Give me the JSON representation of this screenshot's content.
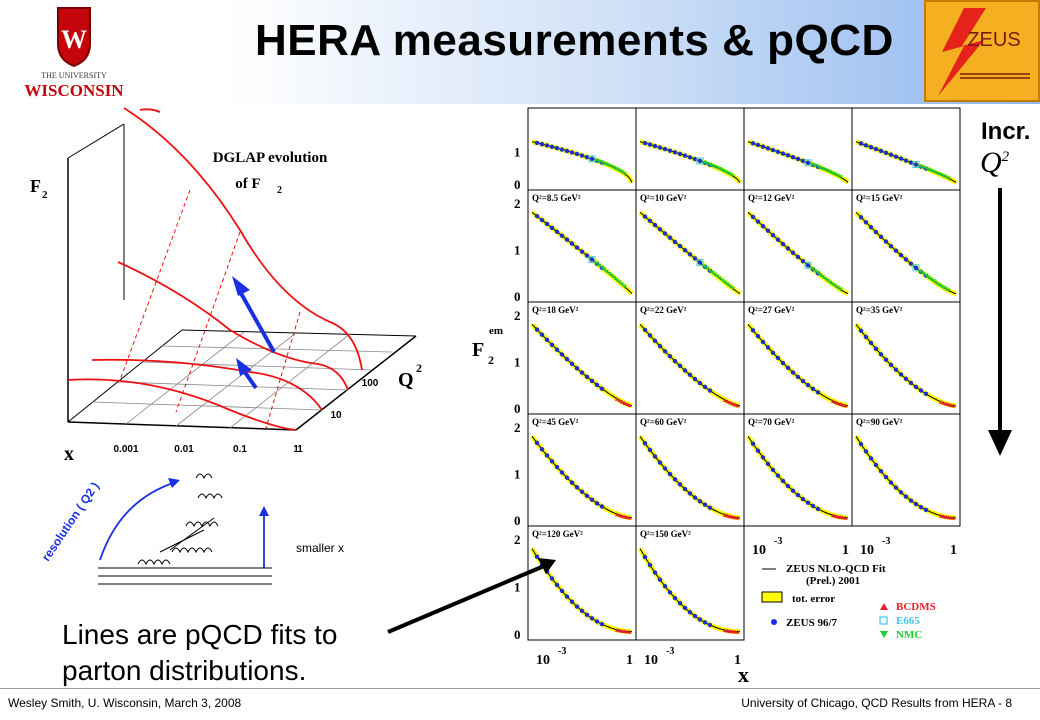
{
  "slide": {
    "title": "HERA measurements & pQCD",
    "increment_label": "Incr.",
    "increment_var": "Q",
    "increment_exp": "2",
    "callout_line1": "Lines are pQCD fits to",
    "callout_line2": "parton distributions.",
    "footer_left": "Wesley Smith, U. Wisconsin, March 3, 2008",
    "footer_right": "University of Chicago, QCD Results from HERA - 8"
  },
  "logos": {
    "uw_top": "THE UNIVERSITY",
    "uw_bottom": "WISCONSIN",
    "zeus": "ZEUS"
  },
  "dglap": {
    "title1": "DGLAP evolution",
    "title2": "of  F",
    "title2_sub": "2",
    "f2_label": "F",
    "f2_sub": "2",
    "x_label": "x",
    "q2_label": "Q",
    "q2_exp": "2",
    "x_ticks": [
      "0.001",
      "0.01",
      "0.1",
      "1"
    ],
    "q2_ticks": [
      "100",
      "10",
      "1"
    ],
    "resolution_label": "resolution ( Q2 )",
    "smaller_x_label": "smaller x"
  },
  "zeus_plot": {
    "y_axis_label": "F",
    "y_axis_sub": "2",
    "y_axis_sup": "em",
    "x_axis_label": "x",
    "y_ticks": [
      "0",
      "1",
      "2"
    ],
    "x_ticks_text": [
      "10",
      "-3",
      "1"
    ],
    "panels": [
      [
        "",
        "",
        "",
        ""
      ],
      [
        "Q²=8.5 GeV²",
        "Q²=10 GeV²",
        "Q²=12 GeV²",
        "Q²=15 GeV²"
      ],
      [
        "Q²=18 GeV²",
        "Q²=22 GeV²",
        "Q²=27 GeV²",
        "Q²=35 GeV²"
      ],
      [
        "Q²=45 GeV²",
        "Q²=60 GeV²",
        "Q²=70 GeV²",
        "Q²=90 GeV²"
      ],
      [
        "Q²=120 GeV²",
        "Q²=150 GeV²"
      ]
    ],
    "legend": {
      "fit_line1": "ZEUS NLO-QCD Fit",
      "fit_line2": "(Prel.) 2001",
      "tot_error": "tot. error",
      "zeus": "ZEUS 96/7",
      "bcdms": "BCDMS",
      "e665": "E665",
      "nmc": "NMC"
    },
    "colors": {
      "zeus": "#1b2fd6",
      "bcdms": "#e8202a",
      "e665": "#3cc8e8",
      "nmc": "#1fcf2f",
      "band": "#ffff00"
    }
  }
}
